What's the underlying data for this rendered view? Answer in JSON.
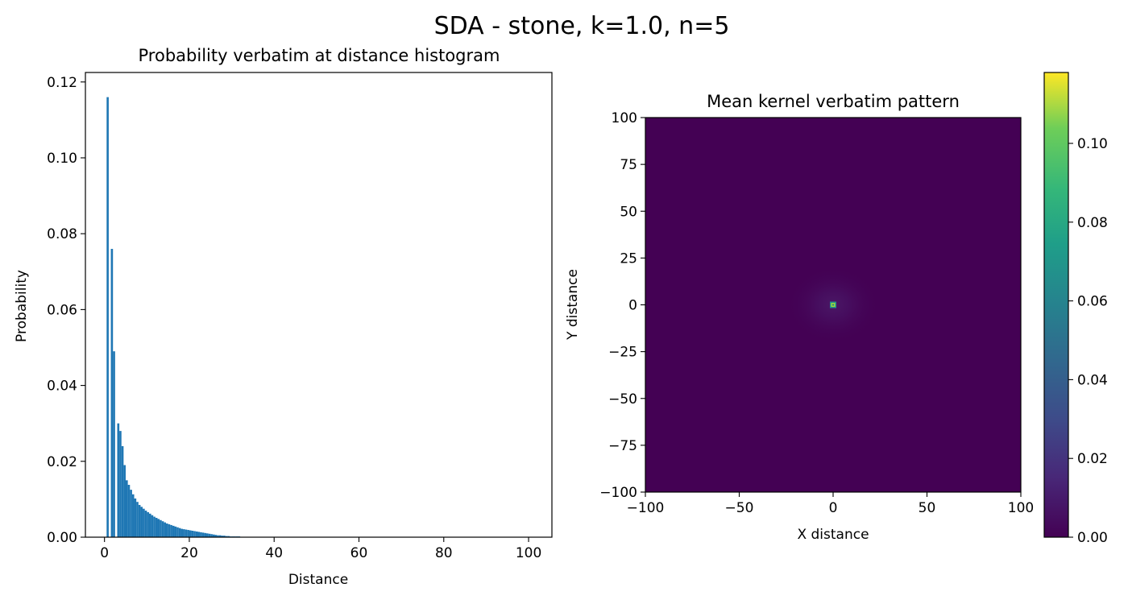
{
  "figure": {
    "suptitle": "SDA - stone, k=1.0, n=5"
  },
  "colors": {
    "bar": "#1f77b4",
    "axis": "#000000",
    "background": "#ffffff",
    "viridis": [
      "#440154",
      "#3b528b",
      "#21918c",
      "#5ec962",
      "#fde725"
    ]
  },
  "chart_data": [
    {
      "type": "bar",
      "title": "Probability verbatim at distance histogram",
      "xlabel": "Distance",
      "ylabel": "Probability",
      "xlim": [
        -4.5,
        105.5
      ],
      "ylim": [
        0,
        0.1225
      ],
      "xticks": [
        0,
        20,
        40,
        60,
        80,
        100
      ],
      "xtick_labels": [
        "0",
        "20",
        "40",
        "60",
        "80",
        "100"
      ],
      "yticks": [
        0.0,
        0.02,
        0.04,
        0.06,
        0.08,
        0.1,
        0.12
      ],
      "ytick_labels": [
        "0.00",
        "0.02",
        "0.04",
        "0.06",
        "0.08",
        "0.10",
        "0.12"
      ],
      "grid": false,
      "bin_width": 0.5,
      "x": [
        0.5,
        1.0,
        1.5,
        2.0,
        2.5,
        3.0,
        3.5,
        4.0,
        4.5,
        5.0,
        5.5,
        6.0,
        6.5,
        7.0,
        7.5,
        8.0,
        8.5,
        9.0,
        9.5,
        10.0,
        10.5,
        11.0,
        11.5,
        12.0,
        12.5,
        13.0,
        13.5,
        14.0,
        14.5,
        15.0,
        15.5,
        16.0,
        16.5,
        17.0,
        17.5,
        18.0,
        18.5,
        19.0,
        19.5,
        20.0,
        20.5,
        21.0,
        21.5,
        22.0,
        22.5,
        23.0,
        23.5,
        24.0,
        24.5,
        25.0,
        25.5,
        26.0,
        26.5,
        27.0,
        27.5,
        28.0,
        28.5,
        29.0,
        29.5,
        30.0,
        31.0,
        32.0,
        33.0,
        34.0,
        35.0,
        36.0,
        37.0,
        38.0,
        39.0,
        40.0
      ],
      "values": [
        0.116,
        0.0,
        0.076,
        0.049,
        0.0,
        0.03,
        0.028,
        0.024,
        0.019,
        0.015,
        0.0138,
        0.0125,
        0.0113,
        0.0102,
        0.0093,
        0.0085,
        0.008,
        0.0075,
        0.007,
        0.0066,
        0.0062,
        0.0058,
        0.0054,
        0.0051,
        0.0048,
        0.0045,
        0.0042,
        0.0039,
        0.0036,
        0.0034,
        0.0032,
        0.003,
        0.0028,
        0.0026,
        0.0024,
        0.0022,
        0.0021,
        0.002,
        0.0019,
        0.0018,
        0.0017,
        0.0016,
        0.0015,
        0.0014,
        0.0013,
        0.0012,
        0.0011,
        0.001,
        0.0009,
        0.0008,
        0.0007,
        0.0006,
        0.0005,
        0.0005,
        0.0004,
        0.0004,
        0.0003,
        0.0003,
        0.0002,
        0.0002,
        0.0002,
        0.0001,
        0.0001,
        0.0001,
        0.0001,
        0.0001,
        0.0001,
        0.0,
        0.0,
        0.0
      ]
    },
    {
      "type": "heatmap",
      "title": "Mean kernel verbatim pattern",
      "xlabel": "X distance",
      "ylabel": "Y distance",
      "xlim": [
        -100,
        100
      ],
      "ylim": [
        -100,
        100
      ],
      "xticks": [
        -100,
        -50,
        0,
        50,
        100
      ],
      "xtick_labels": [
        "−100",
        "−50",
        "0",
        "50",
        "100"
      ],
      "yticks": [
        100,
        75,
        50,
        25,
        0,
        -25,
        -50,
        -75,
        -100
      ],
      "ytick_labels": [
        "100",
        "75",
        "50",
        "25",
        "0",
        "−25",
        "−50",
        "−75",
        "−100"
      ],
      "colormap": "viridis",
      "peak": {
        "x": 0,
        "y": 0,
        "value": 0.116
      },
      "colorbar": {
        "range": [
          0,
          0.118
        ],
        "ticks": [
          0.0,
          0.02,
          0.04,
          0.06,
          0.08,
          0.1
        ],
        "tick_labels": [
          "0.00",
          "0.02",
          "0.04",
          "0.06",
          "0.08",
          "0.10"
        ]
      }
    }
  ]
}
